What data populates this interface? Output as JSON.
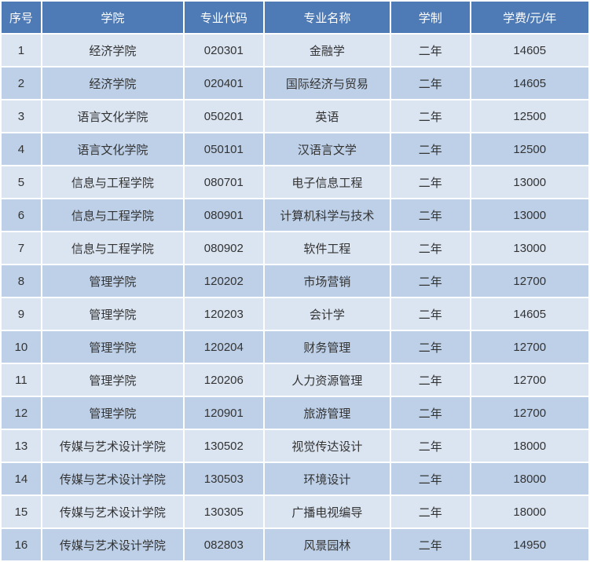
{
  "table": {
    "header_bg": "#4e7ab5",
    "header_fg": "#ffffff",
    "row_bg_odd": "#dbe5f2",
    "row_bg_even": "#bdd0e8",
    "cell_fg": "#333333",
    "columns": [
      {
        "label": "序号",
        "class": "col-seq"
      },
      {
        "label": "学院",
        "class": "col-college"
      },
      {
        "label": "专业代码",
        "class": "col-code"
      },
      {
        "label": "专业名称",
        "class": "col-name"
      },
      {
        "label": "学制",
        "class": "col-duration"
      },
      {
        "label": "学费/元/年",
        "class": "col-fee"
      }
    ],
    "rows": [
      [
        "1",
        "经济学院",
        "020301",
        "金融学",
        "二年",
        "14605"
      ],
      [
        "2",
        "经济学院",
        "020401",
        "国际经济与贸易",
        "二年",
        "14605"
      ],
      [
        "3",
        "语言文化学院",
        "050201",
        "英语",
        "二年",
        "12500"
      ],
      [
        "4",
        "语言文化学院",
        "050101",
        "汉语言文学",
        "二年",
        "12500"
      ],
      [
        "5",
        "信息与工程学院",
        "080701",
        "电子信息工程",
        "二年",
        "13000"
      ],
      [
        "6",
        "信息与工程学院",
        "080901",
        "计算机科学与技术",
        "二年",
        "13000"
      ],
      [
        "7",
        "信息与工程学院",
        "080902",
        "软件工程",
        "二年",
        "13000"
      ],
      [
        "8",
        "管理学院",
        "120202",
        "市场营销",
        "二年",
        "12700"
      ],
      [
        "9",
        "管理学院",
        "120203",
        "会计学",
        "二年",
        "14605"
      ],
      [
        "10",
        "管理学院",
        "120204",
        "财务管理",
        "二年",
        "12700"
      ],
      [
        "11",
        "管理学院",
        "120206",
        "人力资源管理",
        "二年",
        "12700"
      ],
      [
        "12",
        "管理学院",
        "120901",
        "旅游管理",
        "二年",
        "12700"
      ],
      [
        "13",
        "传媒与艺术设计学院",
        "130502",
        "视觉传达设计",
        "二年",
        "18000"
      ],
      [
        "14",
        "传媒与艺术设计学院",
        "130503",
        "环境设计",
        "二年",
        "18000"
      ],
      [
        "15",
        "传媒与艺术设计学院",
        "130305",
        "广播电视编导",
        "二年",
        "18000"
      ],
      [
        "16",
        "传媒与艺术设计学院",
        "082803",
        "风景园林",
        "二年",
        "14950"
      ]
    ]
  }
}
